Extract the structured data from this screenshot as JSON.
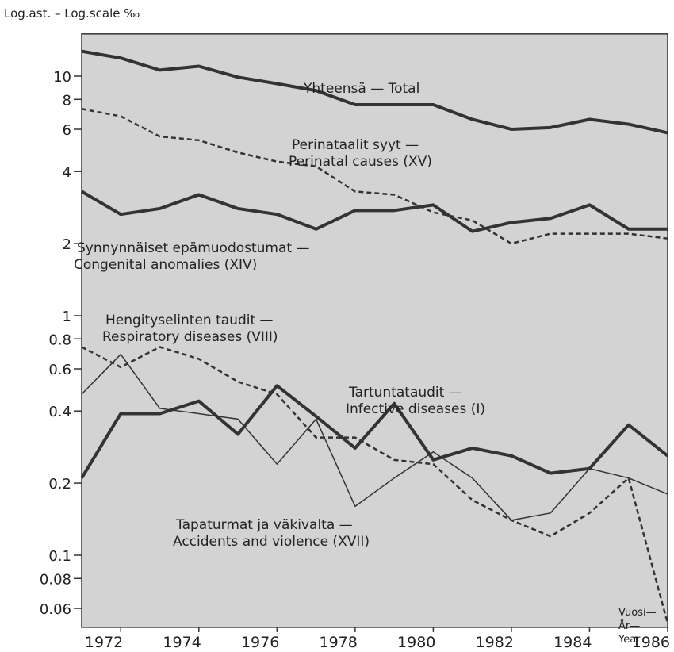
{
  "chart_data": {
    "type": "line",
    "ylabel": "Log.ast. – Log.scale ‰",
    "xlabel_lines": [
      "Vuosi—",
      "År—",
      "Year"
    ],
    "log_scale_y": true,
    "x": [
      1971,
      1972,
      1973,
      1974,
      1975,
      1976,
      1977,
      1978,
      1979,
      1980,
      1981,
      1982,
      1983,
      1984,
      1985,
      1986
    ],
    "xlim": [
      1971,
      1986
    ],
    "xticks": [
      1972,
      1974,
      1976,
      1978,
      1980,
      1982,
      1984,
      1986
    ],
    "ylim": [
      0.05,
      15
    ],
    "yticks": [
      10,
      8,
      6,
      4,
      2,
      1,
      0.8,
      0.6,
      0.4,
      0.2,
      0.1,
      0.08,
      0.06
    ],
    "series": [
      {
        "color": "#333333",
        "linewidth": 4,
        "dashed": false,
        "values": [
          12.7,
          11.9,
          10.6,
          11.0,
          9.9,
          9.3,
          8.7,
          7.6,
          7.6,
          7.6,
          6.6,
          6.0,
          6.1,
          6.6,
          6.3,
          5.8
        ]
      },
      {
        "color": "#333333",
        "linewidth": 2.5,
        "dashed": true,
        "values": [
          7.3,
          6.8,
          5.6,
          5.4,
          4.8,
          4.4,
          4.2,
          3.3,
          3.2,
          2.7,
          2.5,
          2.0,
          2.2,
          2.2,
          2.2,
          2.1
        ]
      },
      {
        "color": "#333333",
        "linewidth": 4,
        "dashed": false,
        "values": [
          3.3,
          2.65,
          2.8,
          3.2,
          2.8,
          2.65,
          2.3,
          2.75,
          2.75,
          2.9,
          2.25,
          2.45,
          2.55,
          2.9,
          2.3,
          2.3
        ]
      },
      {
        "color": "#333333",
        "linewidth": 2.5,
        "dashed": true,
        "values": [
          0.74,
          0.61,
          0.74,
          0.66,
          0.53,
          0.47,
          0.31,
          0.31,
          0.25,
          0.24,
          0.17,
          0.14,
          0.12,
          0.15,
          0.21,
          0.052
        ]
      },
      {
        "color": "#333333",
        "linewidth": 4,
        "dashed": false,
        "values": [
          0.21,
          0.39,
          0.39,
          0.44,
          0.32,
          0.51,
          0.38,
          0.28,
          0.43,
          0.25,
          0.28,
          0.26,
          0.22,
          0.23,
          0.35,
          0.26
        ]
      },
      {
        "color": "#333333",
        "linewidth": 1.5,
        "dashed": false,
        "values": [
          0.47,
          0.69,
          0.41,
          0.39,
          0.37,
          0.24,
          0.37,
          0.16,
          0.21,
          0.27,
          0.21,
          0.14,
          0.15,
          0.23,
          0.21,
          0.18
        ]
      }
    ],
    "annotations": [
      {
        "lines": [
          "Yhteensä — Total"
        ]
      },
      {
        "lines": [
          "Perinataalit syyt —",
          "Perinatal causes (XV)"
        ]
      },
      {
        "lines": [
          "Synnynnäiset epämuodostumat —",
          "Congenital anomalies (XIV)"
        ]
      },
      {
        "lines": [
          "Hengityselinten taudit —",
          "Respiratory diseases (VIII)"
        ]
      },
      {
        "lines": [
          "Tartuntataudit —",
          "Infective diseases (I)"
        ]
      },
      {
        "lines": [
          "Tapaturmat ja väkivalta —",
          "Accidents and violence (XVII)"
        ]
      }
    ]
  }
}
